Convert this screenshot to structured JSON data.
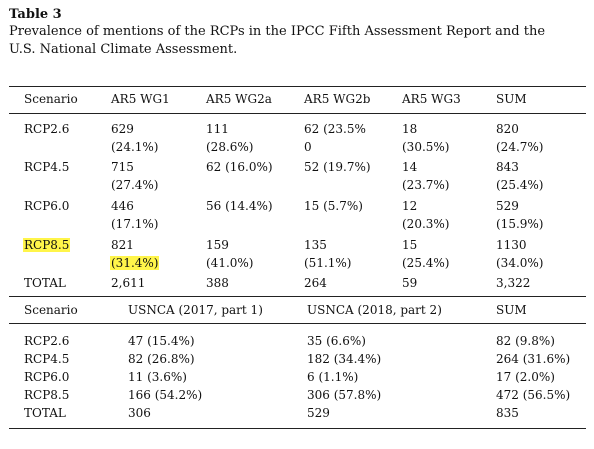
{
  "title": "Table 3",
  "caption_lines": [
    "Prevalence of mentions of the RCPs in the IPCC Fifth Assessment Report and the",
    "U.S. National Climate Assessment."
  ],
  "ar5": {
    "headers": [
      "Scenario",
      "AR5 WG1",
      "AR5 WG2a",
      "AR5 WG2b",
      "AR5 WG3",
      "SUM"
    ],
    "rows": [
      {
        "scenario": "RCP2.6",
        "cells": [
          [
            "629",
            "(24.1%)"
          ],
          [
            "111",
            "(28.6%)"
          ],
          [
            "62 (23.5%",
            "0"
          ],
          [
            "18",
            "(30.5%)"
          ],
          [
            "820",
            "(24.7%)"
          ]
        ]
      },
      {
        "scenario": "RCP4.5",
        "cells": [
          [
            "715",
            "(27.4%)"
          ],
          [
            "62 (16.0%)"
          ],
          [
            "52 (19.7%)"
          ],
          [
            "14",
            "(23.7%)"
          ],
          [
            "843",
            "(25.4%)"
          ]
        ]
      },
      {
        "scenario": "RCP6.0",
        "cells": [
          [
            "446",
            "(17.1%)"
          ],
          [
            "56 (14.4%)"
          ],
          [
            "15 (5.7%)"
          ],
          [
            "12",
            "(20.3%)"
          ],
          [
            "529",
            "(15.9%)"
          ]
        ]
      },
      {
        "scenario": "RCP8.5",
        "cells": [
          [
            "821",
            "(31.4%)"
          ],
          [
            "159",
            "(41.0%)"
          ],
          [
            "135",
            "(51.1%)"
          ],
          [
            "15",
            "(25.4%)"
          ],
          [
            "1130",
            "(34.0%)"
          ]
        ]
      },
      {
        "scenario": "TOTAL",
        "cells": [
          [
            "2,611"
          ],
          [
            "388"
          ],
          [
            "264"
          ],
          [
            "59"
          ],
          [
            "3,322"
          ]
        ]
      }
    ]
  },
  "usnca": {
    "headers": [
      "Scenario",
      "USNCA (2017, part 1)",
      "USNCA (2018, part 2)",
      "SUM"
    ],
    "rows": [
      [
        "RCP2.6",
        "47 (15.4%)",
        "35 (6.6%)",
        "82 (9.8%)"
      ],
      [
        "RCP4.5",
        "82 (26.8%)",
        "182 (34.4%)",
        "264 (31.6%)"
      ],
      [
        "RCP6.0",
        "11 (3.6%)",
        "6 (1.1%)",
        "17 (2.0%)"
      ],
      [
        "RCP8.5",
        "166 (54.2%)",
        "306 (57.8%)",
        "472 (56.5%)"
      ],
      [
        "TOTAL",
        "306",
        "529",
        "835"
      ]
    ]
  },
  "highlight_color": "#fff54a"
}
